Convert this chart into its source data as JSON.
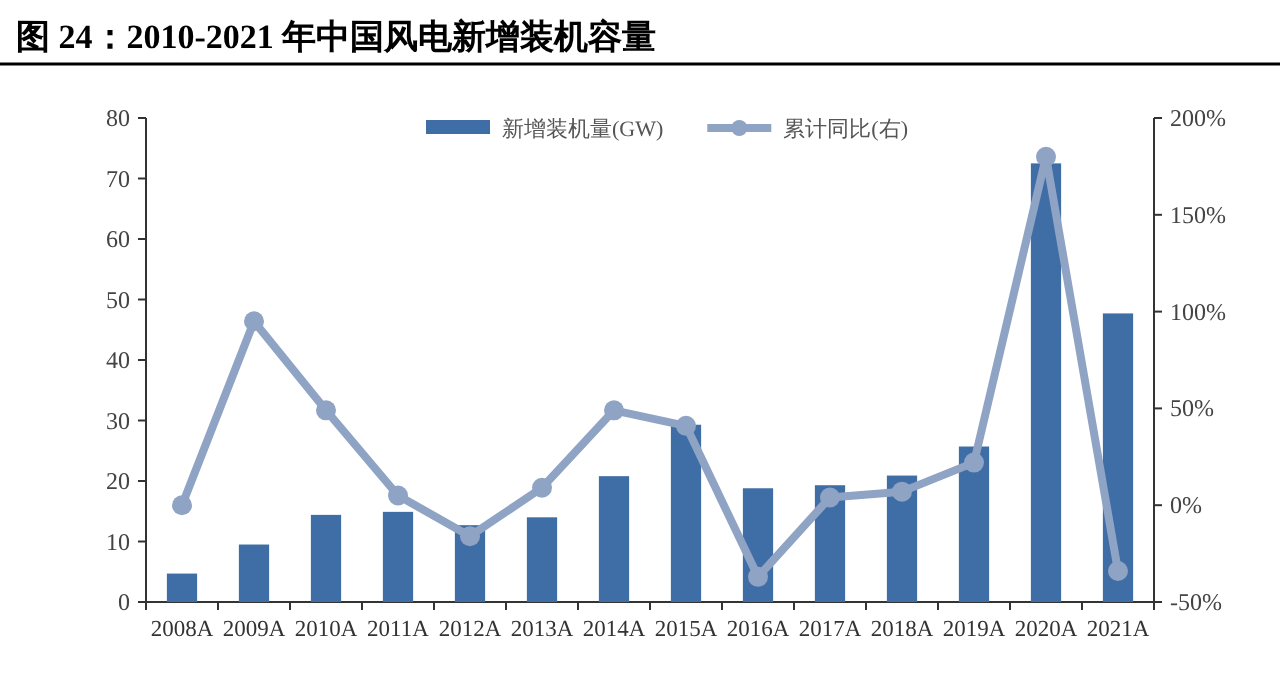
{
  "chart_data": {
    "type": "bar",
    "title": "图 24：2010-2021 年中国风电新增装机容量",
    "categories": [
      "2008A",
      "2009A",
      "2010A",
      "2011A",
      "2012A",
      "2013A",
      "2014A",
      "2015A",
      "2016A",
      "2017A",
      "2018A",
      "2019A",
      "2020A",
      "2021A"
    ],
    "series": [
      {
        "name": "新增装机量(GW)",
        "color": "#3f6ea6",
        "values": [
          4.7,
          9.5,
          14.4,
          14.9,
          12.7,
          14.0,
          20.8,
          29.3,
          18.8,
          19.3,
          20.9,
          25.7,
          72.5,
          47.7
        ]
      },
      {
        "name": "累计同比(右)",
        "type": "line",
        "axis": "y2",
        "marker": "circle",
        "color": "#8fa3c4",
        "values": [
          0,
          95,
          49,
          5,
          -16,
          9,
          49,
          41,
          -37,
          4,
          7,
          22,
          180,
          -34
        ]
      }
    ],
    "ylim": [
      0,
      80
    ],
    "yticks": [
      0,
      10,
      20,
      30,
      40,
      50,
      60,
      70,
      80
    ],
    "y2lim": [
      -50,
      200
    ],
    "y2ticks": [
      {
        "value": -50,
        "label": "-50%"
      },
      {
        "value": 0,
        "label": "0%"
      },
      {
        "value": 50,
        "label": "50%"
      },
      {
        "value": 100,
        "label": "100%"
      },
      {
        "value": 150,
        "label": "150%"
      },
      {
        "value": 200,
        "label": "200%"
      }
    ],
    "legend": "top",
    "grid": false
  }
}
